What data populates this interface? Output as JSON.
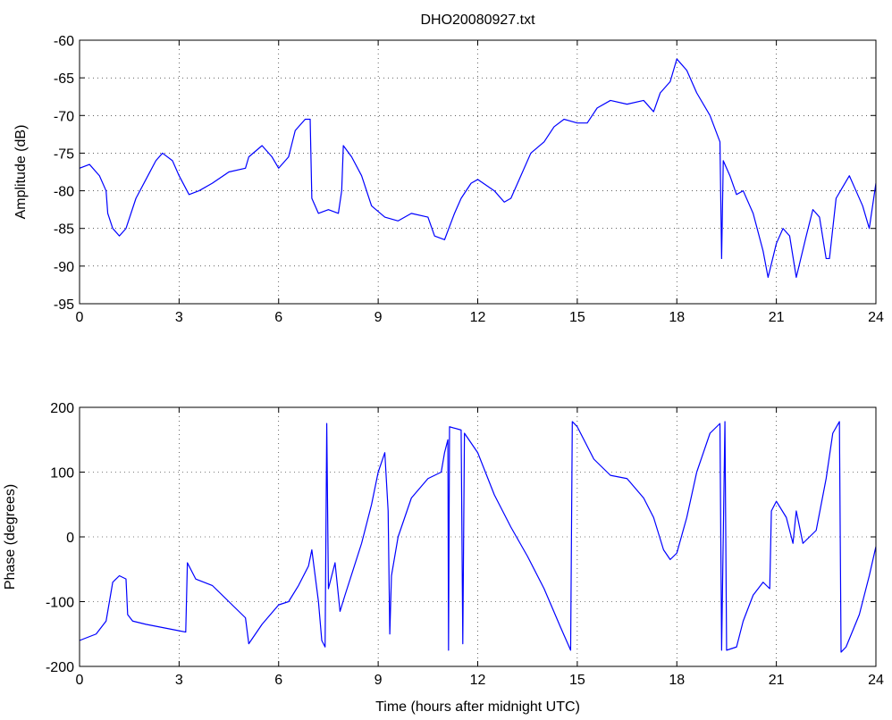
{
  "chart_data": [
    {
      "type": "line",
      "title": "DHO20080927.txt",
      "ylabel": "Amplitude (dB)",
      "color": "#0000ff",
      "grid": true,
      "xlim": [
        0,
        24
      ],
      "xticks": [
        0,
        3,
        6,
        9,
        12,
        15,
        18,
        21,
        24
      ],
      "ylim": [
        -95,
        -60
      ],
      "yticks": [
        -95,
        -90,
        -85,
        -80,
        -75,
        -70,
        -65,
        -60
      ],
      "x": [
        0,
        0.3,
        0.6,
        0.8,
        0.85,
        1.0,
        1.2,
        1.4,
        1.7,
        2.0,
        2.3,
        2.5,
        2.8,
        3.0,
        3.3,
        3.6,
        4.0,
        4.5,
        5.0,
        5.1,
        5.5,
        5.8,
        6.0,
        6.3,
        6.5,
        6.8,
        6.95,
        7.0,
        7.2,
        7.5,
        7.8,
        7.9,
        7.95,
        8.2,
        8.5,
        8.8,
        9.2,
        9.6,
        10.0,
        10.5,
        10.7,
        11.0,
        11.3,
        11.5,
        11.8,
        12.0,
        12.5,
        12.8,
        13.0,
        13.3,
        13.6,
        14.0,
        14.3,
        14.6,
        15.0,
        15.3,
        15.6,
        16.0,
        16.5,
        17.0,
        17.3,
        17.5,
        17.8,
        18.0,
        18.3,
        18.6,
        19.0,
        19.3,
        19.35,
        19.4,
        19.6,
        19.8,
        20.0,
        20.3,
        20.6,
        20.75,
        21.0,
        21.2,
        21.4,
        21.6,
        21.9,
        22.1,
        22.3,
        22.5,
        22.6,
        22.8,
        23.0,
        23.2,
        23.4,
        23.6,
        23.8,
        24.0
      ],
      "values": [
        -77,
        -76.5,
        -78,
        -80,
        -83,
        -85,
        -86,
        -85,
        -81,
        -78.5,
        -76,
        -75,
        -76,
        -78,
        -80.5,
        -80,
        -79,
        -77.5,
        -77,
        -75.5,
        -74,
        -75.5,
        -77,
        -75.5,
        -72,
        -70.5,
        -70.5,
        -81,
        -83,
        -82.5,
        -83,
        -80,
        -74,
        -75.5,
        -78,
        -82,
        -83.5,
        -84,
        -83,
        -83.5,
        -86,
        -86.5,
        -83,
        -81,
        -79,
        -78.5,
        -80,
        -81.5,
        -81,
        -78,
        -75,
        -73.5,
        -71.5,
        -70.5,
        -71,
        -71,
        -69,
        -68,
        -68.5,
        -68,
        -69.5,
        -67,
        -65.5,
        -62.5,
        -64,
        -67,
        -70,
        -73.5,
        -89,
        -76,
        -78,
        -80.5,
        -80,
        -83,
        -88,
        -91.5,
        -87,
        -85,
        -86,
        -91.5,
        -86,
        -82.5,
        -83.5,
        -89,
        -89,
        -81,
        -79.5,
        -78,
        -80,
        -82,
        -85,
        -79
      ]
    },
    {
      "type": "line",
      "ylabel": "Phase (degrees)",
      "xlabel": "Time (hours after midnight UTC)",
      "color": "#0000ff",
      "grid": true,
      "xlim": [
        0,
        24
      ],
      "xticks": [
        0,
        3,
        6,
        9,
        12,
        15,
        18,
        21,
        24
      ],
      "ylim": [
        -200,
        200
      ],
      "yticks": [
        -200,
        -100,
        0,
        100,
        200
      ],
      "x": [
        0,
        0.5,
        0.8,
        1.0,
        1.2,
        1.4,
        1.45,
        1.6,
        2.0,
        2.5,
        3.0,
        3.2,
        3.25,
        3.5,
        4.0,
        4.5,
        5.0,
        5.1,
        5.5,
        6.0,
        6.3,
        6.6,
        6.9,
        7.0,
        7.2,
        7.3,
        7.4,
        7.45,
        7.5,
        7.7,
        7.85,
        8.0,
        8.5,
        8.8,
        9.0,
        9.2,
        9.3,
        9.35,
        9.4,
        9.6,
        10.0,
        10.5,
        10.9,
        11.0,
        11.1,
        11.12,
        11.15,
        11.5,
        11.55,
        11.6,
        12.0,
        12.5,
        13.0,
        13.5,
        14.0,
        14.5,
        14.8,
        14.85,
        15.0,
        15.5,
        16.0,
        16.5,
        17.0,
        17.3,
        17.6,
        17.8,
        18.0,
        18.3,
        18.6,
        19.0,
        19.3,
        19.35,
        19.45,
        19.5,
        19.8,
        20.0,
        20.3,
        20.6,
        20.8,
        20.85,
        21.0,
        21.3,
        21.5,
        21.6,
        21.8,
        22.2,
        22.5,
        22.7,
        22.9,
        22.95,
        23.1,
        23.5,
        23.8,
        24.0
      ],
      "values": [
        -160,
        -150,
        -130,
        -70,
        -60,
        -65,
        -120,
        -130,
        -135,
        -140,
        -145,
        -147,
        -40,
        -65,
        -75,
        -100,
        -125,
        -165,
        -135,
        -105,
        -100,
        -75,
        -45,
        -20,
        -100,
        -160,
        -170,
        175,
        -80,
        -40,
        -115,
        -90,
        -10,
        50,
        100,
        130,
        40,
        -150,
        -60,
        0,
        60,
        90,
        100,
        130,
        150,
        -175,
        170,
        165,
        -165,
        160,
        130,
        65,
        15,
        -30,
        -80,
        -140,
        -175,
        178,
        170,
        120,
        95,
        90,
        60,
        30,
        -20,
        -35,
        -25,
        30,
        100,
        160,
        175,
        -175,
        178,
        -175,
        -170,
        -130,
        -90,
        -70,
        -80,
        40,
        55,
        30,
        -10,
        40,
        -10,
        10,
        90,
        160,
        178,
        -178,
        -170,
        -120,
        -60,
        -15
      ]
    }
  ]
}
